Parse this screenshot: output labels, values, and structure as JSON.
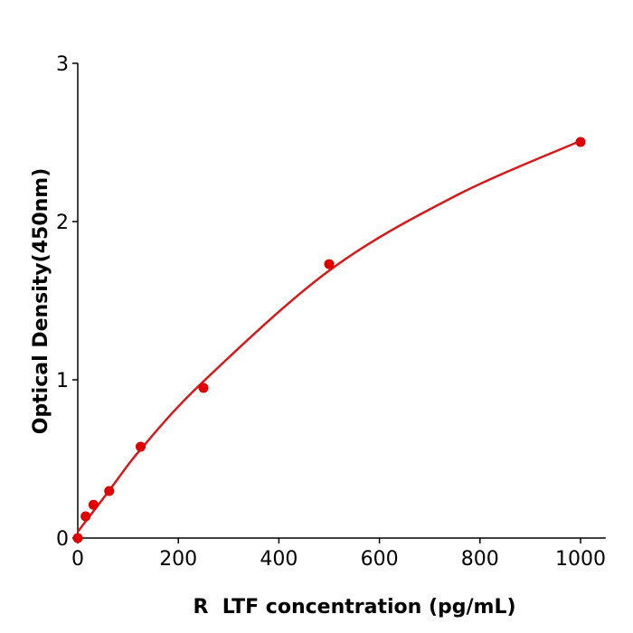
{
  "chart_data": {
    "type": "scatter",
    "title": "",
    "xlabel": "R  LTF concentration (pg/mL)",
    "ylabel": "Optical Density(450nm)",
    "xlim": [
      0,
      1050
    ],
    "ylim": [
      0,
      3
    ],
    "xticks": [
      0,
      200,
      400,
      600,
      800,
      1000
    ],
    "yticks": [
      0,
      1,
      2,
      3
    ],
    "grid": false,
    "points": {
      "x": [
        0,
        15.6,
        31.25,
        62.5,
        125,
        250,
        500,
        1000
      ],
      "y": [
        0.0,
        0.137,
        0.21,
        0.297,
        0.577,
        0.949,
        1.731,
        2.503
      ]
    },
    "fit_curve": {
      "x": [
        0,
        62.5,
        125,
        250,
        500,
        750,
        1000
      ],
      "y": [
        0.04,
        0.3,
        0.56,
        0.99,
        1.69,
        2.16,
        2.51
      ]
    },
    "colors": {
      "points": "#e00000",
      "curve": "#d81818",
      "axes": "#000000"
    }
  }
}
